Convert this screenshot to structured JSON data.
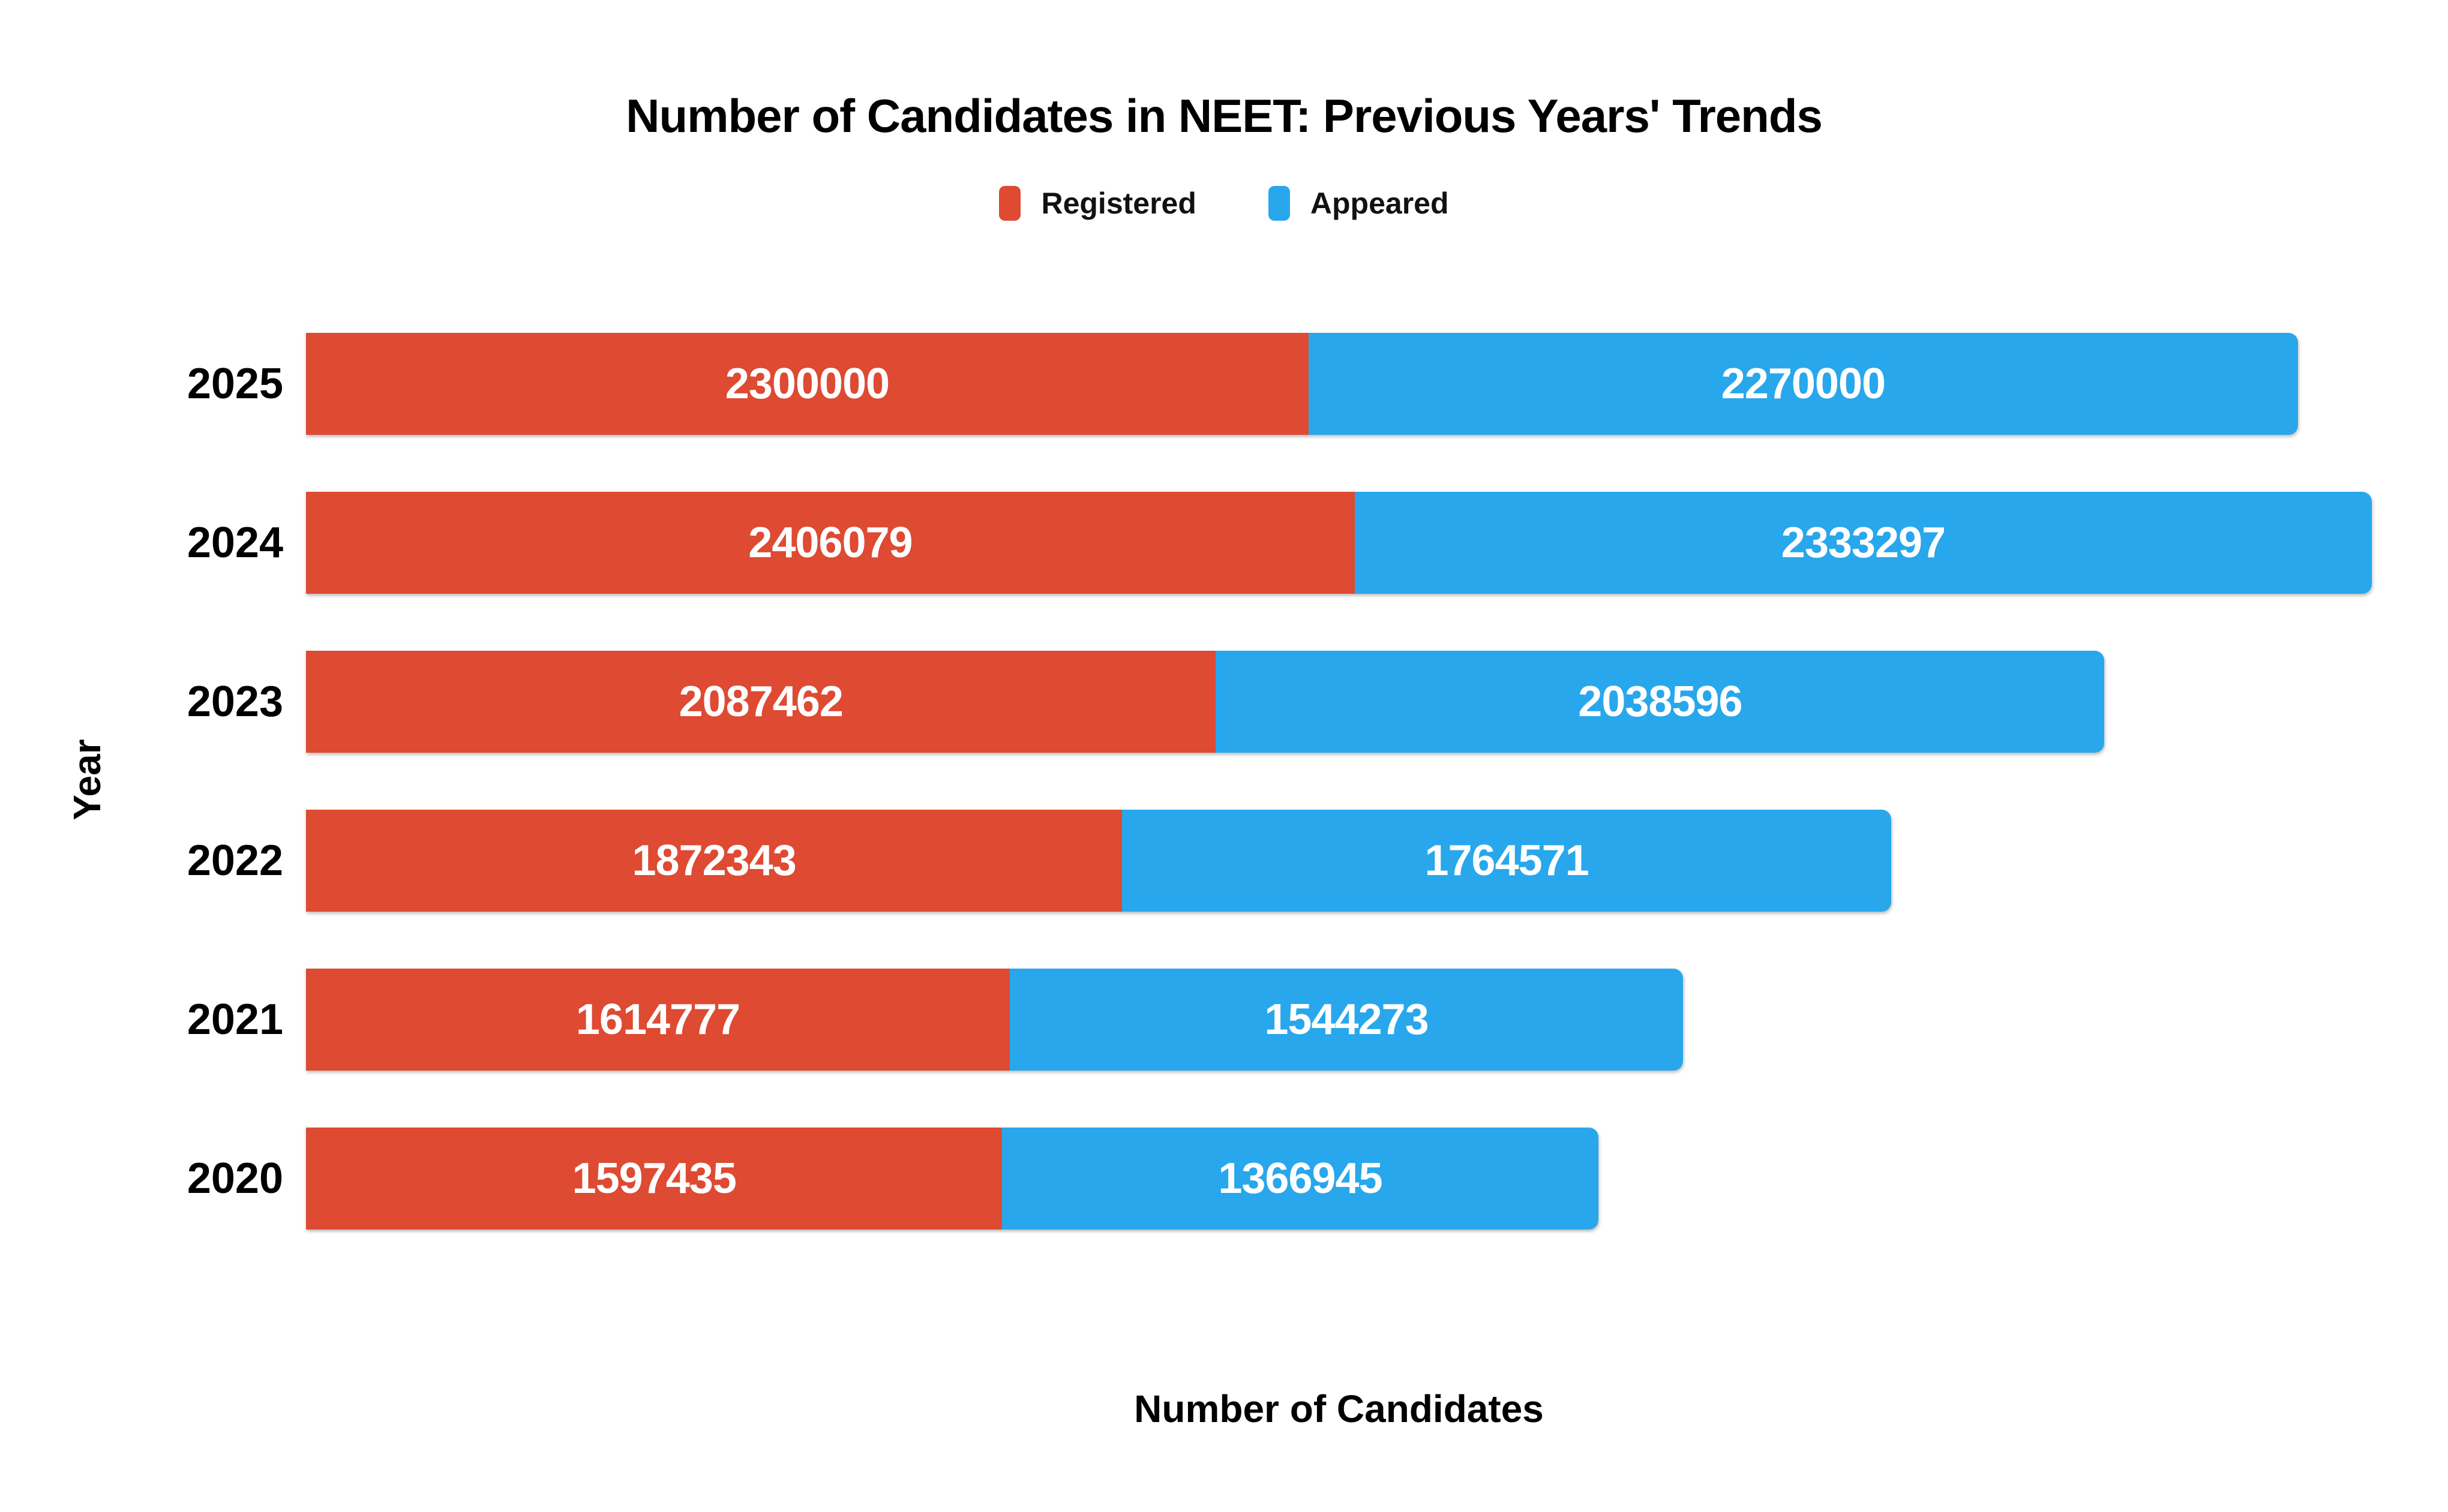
{
  "title": "Number of Candidates in NEET: Previous Years' Trends",
  "axes": {
    "x_label": "Number of Candidates",
    "y_label": "Year"
  },
  "colors": {
    "registered": "#DE4A32",
    "appeared": "#28A7EC",
    "text": "#000000",
    "bar_value_text": "#FFFFFF",
    "background": "#FFFFFF"
  },
  "chart_data": {
    "type": "bar",
    "orientation": "horizontal",
    "stacked": true,
    "title": "Number of Candidates in NEET: Previous Years' Trends",
    "xlabel": "Number of Candidates",
    "ylabel": "Year",
    "categories": [
      "2025",
      "2024",
      "2023",
      "2022",
      "2021",
      "2020"
    ],
    "series": [
      {
        "name": "Registered",
        "color": "#DE4A32",
        "values": [
          2300000,
          2406079,
          2087462,
          1872343,
          1614777,
          1597435
        ]
      },
      {
        "name": "Appeared",
        "color": "#28A7EC",
        "values": [
          2270000,
          2333297,
          2038596,
          1764571,
          1544273,
          1366945
        ]
      }
    ],
    "totals_per_category": [
      4570000,
      4739376,
      4126058,
      3636914,
      3159050,
      2964380
    ],
    "xlim": [
      0,
      4739376
    ],
    "grid": false,
    "legend_position": "top",
    "bar_value_labels": true
  }
}
